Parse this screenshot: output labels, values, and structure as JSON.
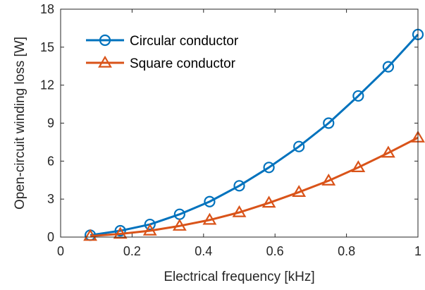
{
  "chart_data": {
    "type": "line",
    "title": "",
    "xlabel": "Electrical frequency [kHz]",
    "ylabel": "Open-circuit winding loss [W]",
    "xlim": [
      0,
      1
    ],
    "ylim": [
      0,
      18
    ],
    "xticks": [
      0,
      0.2,
      0.4,
      0.6,
      0.8,
      1
    ],
    "xtick_labels": [
      "0",
      "0.2",
      "0.4",
      "0.6",
      "0.8",
      "1"
    ],
    "yticks": [
      0,
      3,
      6,
      9,
      12,
      15,
      18
    ],
    "ytick_labels": [
      "0",
      "3",
      "6",
      "9",
      "12",
      "15",
      "18"
    ],
    "grid": false,
    "legend_position": "top-left",
    "series": [
      {
        "name": "Circular conductor",
        "marker": "circle",
        "color": "#0072BD",
        "x": [
          0.083,
          0.167,
          0.25,
          0.333,
          0.417,
          0.5,
          0.583,
          0.667,
          0.75,
          0.833,
          0.917,
          1.0
        ],
        "y": [
          0.15,
          0.5,
          1.0,
          1.8,
          2.8,
          4.05,
          5.5,
          7.15,
          9.0,
          11.15,
          13.45,
          16.0
        ]
      },
      {
        "name": "Square conductor",
        "marker": "triangle",
        "color": "#D95319",
        "x": [
          0.083,
          0.167,
          0.25,
          0.333,
          0.417,
          0.5,
          0.583,
          0.667,
          0.75,
          0.833,
          0.917,
          1.0
        ],
        "y": [
          0.08,
          0.25,
          0.5,
          0.88,
          1.35,
          1.95,
          2.7,
          3.55,
          4.45,
          5.5,
          6.65,
          7.85
        ]
      }
    ]
  }
}
